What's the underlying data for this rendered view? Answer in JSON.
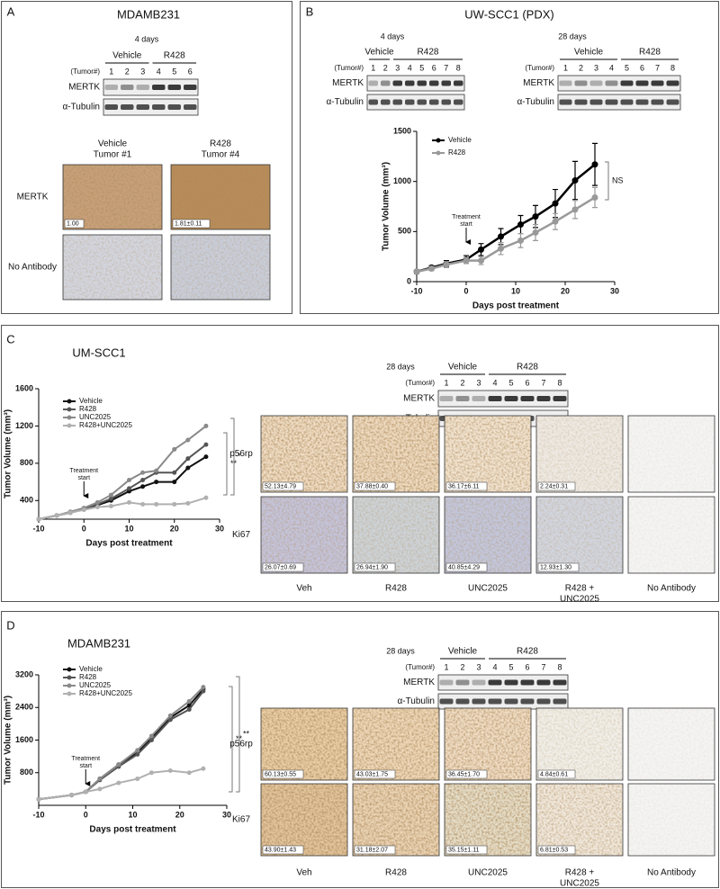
{
  "figure": {
    "panel_a": {
      "label": "A",
      "title": "MDAMB231",
      "blot": {
        "timepoint": "4 days",
        "tumor_label": "(Tumor#)",
        "groups": [
          {
            "name": "Vehicle",
            "tumors": [
              1,
              2,
              3
            ]
          },
          {
            "name": "R428",
            "tumors": [
              4,
              5,
              6
            ]
          }
        ],
        "rows": [
          "MERTK",
          "α-Tubulin"
        ]
      },
      "ihc": {
        "columns": [
          [
            "Vehicle",
            "Tumor #1"
          ],
          [
            "R428",
            "Tumor #4"
          ]
        ],
        "rows": [
          {
            "name": "MERTK",
            "quant": [
              "1.00",
              "1.81±0.11"
            ]
          },
          {
            "name": "No Antibody"
          }
        ]
      }
    },
    "panel_b": {
      "label": "B",
      "title": "UW-SCC1 (PDX)",
      "blots": [
        {
          "timepoint": "4 days",
          "tumor_label": "(Tumor#)",
          "groups": [
            {
              "name": "Vehicle",
              "tumors": [
                1,
                2
              ]
            },
            {
              "name": "R428",
              "tumors": [
                3,
                4,
                5,
                6,
                7,
                8
              ]
            }
          ],
          "rows": [
            "MERTK",
            "α-Tubulin"
          ]
        },
        {
          "timepoint": "28 days",
          "tumor_label": "(Tumor#)",
          "groups": [
            {
              "name": "Vehicle",
              "tumors": [
                1,
                2,
                3,
                4
              ]
            },
            {
              "name": "R428",
              "tumors": [
                5,
                6,
                7,
                8
              ]
            }
          ],
          "rows": [
            "MERTK",
            "α-Tubulin"
          ]
        }
      ]
    },
    "panel_c": {
      "label": "C",
      "title": "UM-SCC1",
      "blot": {
        "timepoint": "28 days",
        "tumor_label": "(Tumor#)",
        "groups": [
          {
            "name": "Vehicle",
            "tumors": [
              1,
              2,
              3
            ]
          },
          {
            "name": "R428",
            "tumors": [
              4,
              5,
              6,
              7,
              8
            ]
          }
        ],
        "rows": [
          "MERTK",
          "α-Tubulin"
        ]
      },
      "ihc": {
        "columns": [
          [
            "Veh"
          ],
          [
            "R428"
          ],
          [
            "UNC2025"
          ],
          [
            "R428 +",
            "UNC2025"
          ],
          [
            "No Antibody"
          ]
        ],
        "rows": [
          {
            "name": "p56rp",
            "quant": [
              "52.13±4.79",
              "37.88±0.40",
              "36.17±6.11",
              "2.24±0.31"
            ]
          },
          {
            "name": "Ki67",
            "quant": [
              "26.07±0.69",
              "26.94±1.90",
              "40.85±4.29",
              "12.93±1.30"
            ]
          }
        ]
      }
    },
    "panel_d": {
      "label": "D",
      "title": "MDAMB231",
      "blot": {
        "timepoint": "28 days",
        "tumor_label": "(Tumor#)",
        "groups": [
          {
            "name": "Vehicle",
            "tumors": [
              1,
              2,
              3
            ]
          },
          {
            "name": "R428",
            "tumors": [
              4,
              5,
              6,
              7,
              8
            ]
          }
        ],
        "rows": [
          "MERTK",
          "α-Tubulin"
        ]
      },
      "ihc": {
        "columns": [
          [
            "Veh"
          ],
          [
            "R428"
          ],
          [
            "UNC2025"
          ],
          [
            "R428 +",
            "UNC2025"
          ],
          [
            "No Antibody"
          ]
        ],
        "rows": [
          {
            "name": "p56rp",
            "quant": [
              "60.13±0.55",
              "43.03±1.75",
              "36.45±1.70",
              "4.84±0.61"
            ]
          },
          {
            "name": "Ki67",
            "quant": [
              "43.90±1.43",
              "31.18±2.07",
              "35.15±1.11",
              "6.81±0.53"
            ]
          }
        ]
      }
    }
  },
  "chart_data": [
    {
      "type": "line",
      "xlabel": "Days post treatment",
      "ylabel": "Tumor Volume (mm³)",
      "x": [
        -10,
        -7,
        -4,
        0,
        3,
        7,
        11,
        14,
        18,
        22,
        26
      ],
      "xlim": [
        -10,
        30
      ],
      "xticks": [
        -10,
        0,
        10,
        20,
        30
      ],
      "ylim": [
        0,
        1500
      ],
      "yticks": [
        0,
        500,
        1000,
        1500
      ],
      "treatment_label": [
        "Treatment",
        "start"
      ],
      "significance": [
        "NS"
      ],
      "series": [
        {
          "name": "Vehicle",
          "color": "#000000",
          "values": [
            100,
            140,
            180,
            220,
            320,
            450,
            570,
            650,
            780,
            1010,
            1170
          ],
          "errors": [
            20,
            20,
            30,
            40,
            60,
            80,
            90,
            110,
            140,
            190,
            210
          ]
        },
        {
          "name": "R428",
          "color": "#999999",
          "values": [
            100,
            130,
            170,
            210,
            210,
            330,
            410,
            490,
            600,
            720,
            840
          ],
          "errors": [
            20,
            20,
            30,
            30,
            40,
            60,
            70,
            80,
            80,
            90,
            100
          ]
        }
      ]
    },
    {
      "type": "line",
      "xlabel": "Days post treatment",
      "ylabel": "Tumor Volume (mm³)",
      "x": [
        -10,
        -6,
        -3,
        0,
        3,
        6,
        10,
        13,
        16,
        20,
        23,
        27
      ],
      "xlim": [
        -10,
        30
      ],
      "xticks": [
        -10,
        0,
        10,
        20,
        30
      ],
      "ylim": [
        200,
        1600
      ],
      "yticks": [
        400,
        800,
        1200,
        1600
      ],
      "treatment_label": [
        "Treatment",
        "start"
      ],
      "significance": [
        "**",
        "*"
      ],
      "series": [
        {
          "name": "Vehicle",
          "color": "#111111",
          "values": [
            200,
            240,
            270,
            310,
            350,
            400,
            500,
            550,
            600,
            600,
            750,
            870
          ]
        },
        {
          "name": "R428",
          "color": "#555555",
          "values": [
            200,
            240,
            270,
            310,
            360,
            420,
            530,
            620,
            700,
            700,
            850,
            1000
          ]
        },
        {
          "name": "UNC2025",
          "color": "#8a8a8a",
          "values": [
            200,
            240,
            280,
            320,
            380,
            460,
            620,
            700,
            720,
            950,
            1050,
            1200
          ]
        },
        {
          "name": "R428+UNC2025",
          "color": "#b0b0b0",
          "values": [
            200,
            240,
            270,
            300,
            330,
            340,
            380,
            360,
            360,
            360,
            370,
            430
          ]
        }
      ]
    },
    {
      "type": "line",
      "xlabel": "Days post treatment",
      "ylabel": "Tumor Volume (mm³)",
      "x": [
        -10,
        -3,
        0,
        3,
        7,
        11,
        14,
        18,
        22,
        25
      ],
      "xlim": [
        -10,
        30
      ],
      "xticks": [
        -10,
        0,
        10,
        20,
        30
      ],
      "ylim": [
        0,
        3200
      ],
      "yticks": [
        800,
        1600,
        2400,
        3200
      ],
      "treatment_label": [
        "Treatment",
        "start"
      ],
      "significance": [
        "**",
        "**"
      ],
      "series": [
        {
          "name": "Vehicle",
          "color": "#111111",
          "values": [
            150,
            250,
            330,
            650,
            1000,
            1300,
            1650,
            2150,
            2450,
            2850
          ]
        },
        {
          "name": "R428",
          "color": "#555555",
          "values": [
            150,
            250,
            330,
            620,
            950,
            1250,
            1600,
            2100,
            2350,
            2800
          ]
        },
        {
          "name": "UNC2025",
          "color": "#8a8a8a",
          "values": [
            150,
            250,
            330,
            650,
            1000,
            1350,
            1700,
            2200,
            2550,
            2900
          ]
        },
        {
          "name": "R428+UNC2025",
          "color": "#b0b0b0",
          "values": [
            150,
            250,
            330,
            400,
            550,
            650,
            800,
            850,
            800,
            900
          ]
        }
      ]
    }
  ]
}
